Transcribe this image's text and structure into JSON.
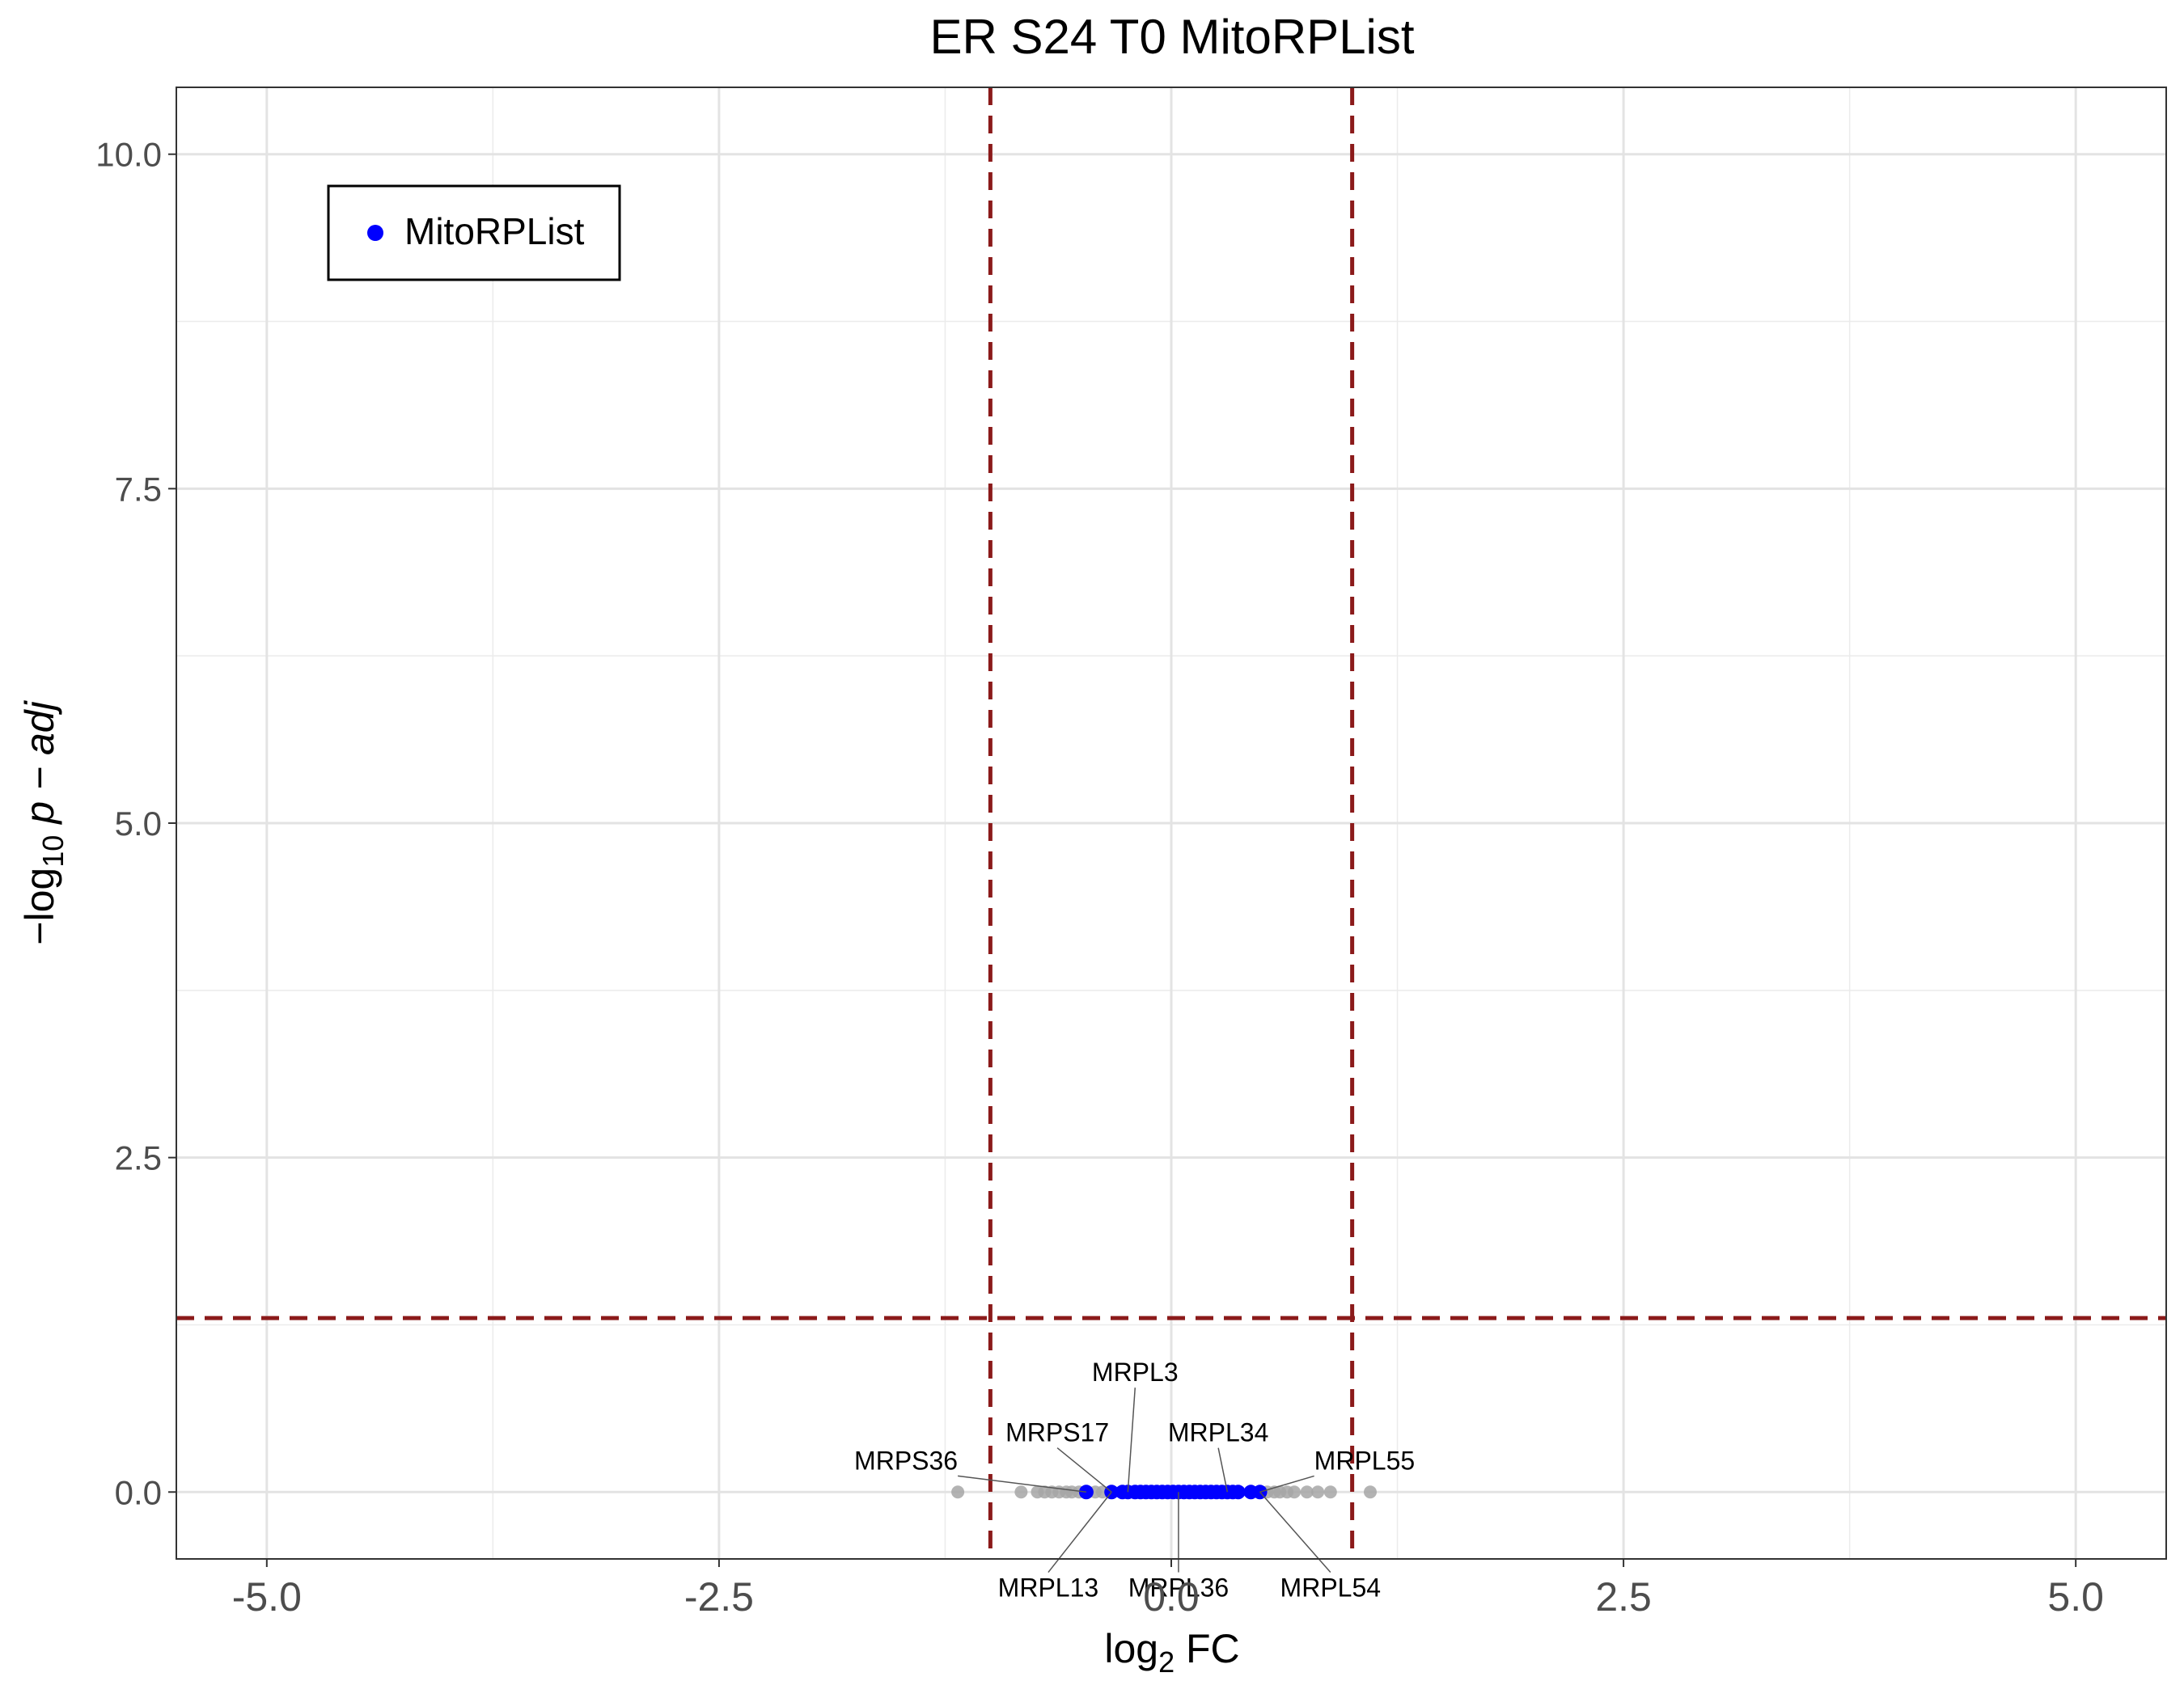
{
  "chart_data": {
    "type": "scatter",
    "title": "ER S24 T0 MitoRPList",
    "xlabel": {
      "main": "log",
      "sub": "2",
      "suffix": " FC"
    },
    "ylabel": {
      "prefix": "−log",
      "sub": "10",
      "suffix": " p − adj"
    },
    "xlim": [
      -5.5,
      5.5
    ],
    "ylim": [
      -0.5,
      10.5
    ],
    "x_ticks": [
      {
        "value": -5.0,
        "label": "-5.0"
      },
      {
        "value": -2.5,
        "label": "-2.5"
      },
      {
        "value": 0.0,
        "label": "0.0"
      },
      {
        "value": 2.5,
        "label": "2.5"
      },
      {
        "value": 5.0,
        "label": "5.0"
      }
    ],
    "y_ticks": [
      {
        "value": 0.0,
        "label": "0.0"
      },
      {
        "value": 2.5,
        "label": "2.5"
      },
      {
        "value": 5.0,
        "label": "5.0"
      },
      {
        "value": 7.5,
        "label": "7.5"
      },
      {
        "value": 10.0,
        "label": "10.0"
      }
    ],
    "grid": true,
    "thresholds": {
      "fc": [
        -1,
        1
      ],
      "p": 1.3,
      "color": "#8b1a1a"
    },
    "legend": {
      "position": "top-left",
      "entries": [
        {
          "name": "MitoRPList",
          "color": "#0000ff"
        }
      ]
    },
    "series": [
      {
        "name": "MitoRPList",
        "color": "#0000ff",
        "x": [
          -0.47,
          -0.33,
          -0.27,
          -0.24,
          -0.2,
          -0.17,
          -0.14,
          -0.11,
          -0.08,
          -0.05,
          -0.02,
          0.01,
          0.04,
          0.07,
          0.1,
          0.13,
          0.16,
          0.19,
          0.22,
          0.25,
          0.28,
          0.31,
          0.34,
          0.37,
          0.44,
          0.49
        ],
        "y": [
          0.0,
          0.0,
          0.0,
          0.0,
          0.0,
          0.0,
          0.0,
          0.0,
          0.0,
          0.0,
          0.0,
          0.0,
          0.0,
          0.0,
          0.0,
          0.0,
          0.0,
          0.0,
          0.0,
          0.0,
          0.0,
          0.0,
          0.0,
          0.0,
          0.0,
          0.0
        ]
      },
      {
        "color": "#a6a6a6",
        "x": [
          -1.18,
          -0.83,
          -0.74,
          -0.7,
          -0.66,
          -0.62,
          -0.58,
          -0.55,
          -0.51,
          -0.42,
          -0.38,
          0.53,
          0.57,
          0.6,
          0.64,
          0.68,
          0.75,
          0.81,
          0.88,
          1.1
        ],
        "y": [
          0.0,
          0.0,
          0.0,
          0.0,
          0.0,
          0.0,
          0.0,
          0.0,
          0.0,
          0.0,
          0.0,
          0.0,
          0.0,
          0.0,
          0.0,
          0.0,
          0.0,
          0.0,
          0.0,
          0.0
        ]
      }
    ],
    "annotations": [
      {
        "label": "MRPL3",
        "x": -0.24,
        "y": 0.0,
        "label_x": -0.2,
        "label_y": 0.78,
        "anchor": "middle"
      },
      {
        "label": "MRPS17",
        "x": -0.33,
        "y": 0.0,
        "label_x": -0.63,
        "label_y": 0.33,
        "anchor": "middle"
      },
      {
        "label": "MRPL34",
        "x": 0.31,
        "y": 0.0,
        "label_x": 0.26,
        "label_y": 0.33,
        "anchor": "middle"
      },
      {
        "label": "MRPS36",
        "x": -0.47,
        "y": 0.0,
        "label_x": -1.18,
        "label_y": 0.12,
        "anchor": "end"
      },
      {
        "label": "MRPL55",
        "x": 0.49,
        "y": 0.0,
        "label_x": 0.79,
        "label_y": 0.12,
        "anchor": "start"
      },
      {
        "label": "MRPL13",
        "x": -0.33,
        "y": 0.0,
        "label_x": -0.68,
        "label_y": -0.6,
        "anchor": "middle"
      },
      {
        "label": "MRPL36",
        "x": 0.04,
        "y": 0.0,
        "label_x": 0.04,
        "label_y": -0.6,
        "anchor": "middle"
      },
      {
        "label": "MRPL54",
        "x": 0.49,
        "y": 0.0,
        "label_x": 0.88,
        "label_y": -0.6,
        "anchor": "middle"
      }
    ]
  }
}
